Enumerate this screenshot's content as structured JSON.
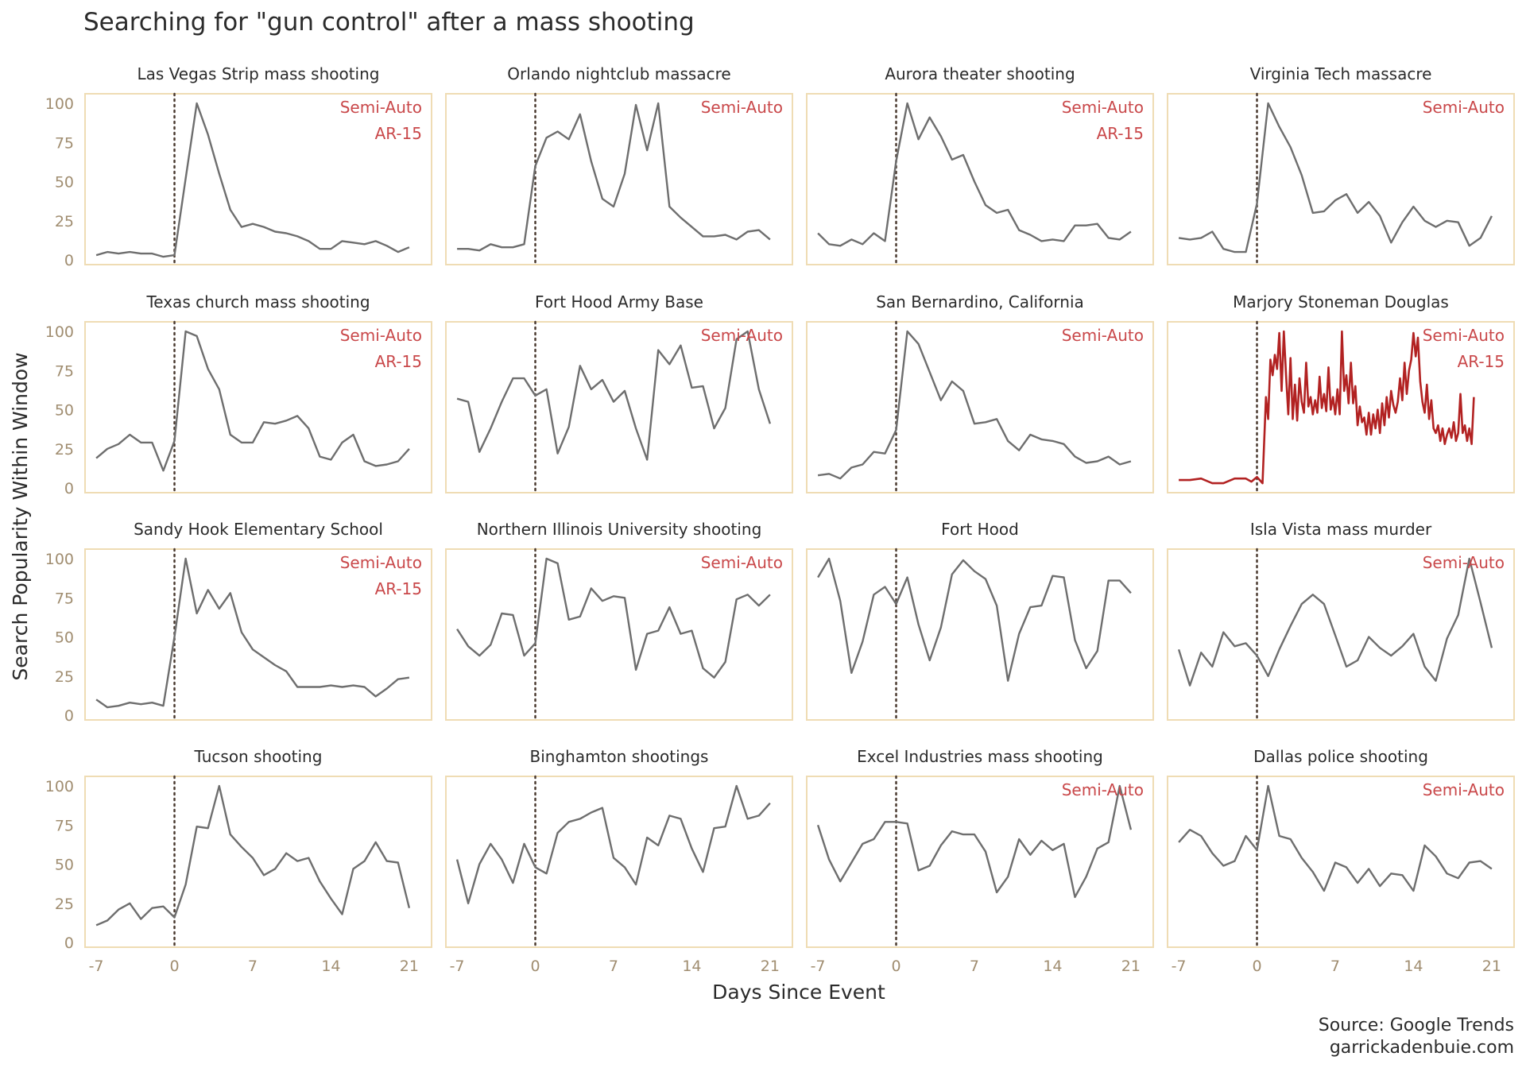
{
  "page": {
    "title": "Searching for \"gun control\" after a mass shooting",
    "source_line1": "Source: Google Trends",
    "source_line2": "garrickadenbuie.com"
  },
  "colors": {
    "line": "#6e6e6e",
    "highlight": "#b22222",
    "annotation": "#c9484a",
    "panel_border": "#efdcb4",
    "tick_label": "#a08d70",
    "event_line": "#4a3a30",
    "text": "#2b2b2b"
  },
  "chart_data": {
    "type": "line",
    "layout": "small-multiples 4x4, shared axes",
    "xlabel": "Days Since Event",
    "ylabel": "Search Popularity Within Window",
    "xlim": [
      -8,
      23
    ],
    "ylim": [
      0,
      100
    ],
    "x_ticks": [
      -7,
      0,
      7,
      14,
      21
    ],
    "y_ticks": [
      0,
      25,
      50,
      75,
      100
    ],
    "event_marker": {
      "x": 0,
      "style": "dotted"
    },
    "grid": false,
    "panels": [
      {
        "name": "Las Vegas Strip mass shooting",
        "tags": [
          "Semi-Auto",
          "AR-15"
        ],
        "x": [
          -7,
          -6,
          -5,
          -4,
          -3,
          -2,
          -1,
          0,
          1,
          2,
          3,
          4,
          5,
          6,
          7,
          8,
          9,
          10,
          11,
          12,
          13,
          14,
          15,
          16,
          17,
          18,
          19,
          20,
          21
        ],
        "y": [
          3,
          5,
          4,
          5,
          4,
          4,
          2,
          3,
          52,
          100,
          80,
          55,
          32,
          21,
          23,
          21,
          18,
          17,
          15,
          12,
          7,
          7,
          12,
          11,
          10,
          12,
          9,
          5,
          8
        ]
      },
      {
        "name": "Orlando nightclub massacre",
        "tags": [
          "Semi-Auto"
        ],
        "x": [
          -7,
          -6,
          -5,
          -4,
          -3,
          -2,
          -1,
          0,
          1,
          2,
          3,
          4,
          5,
          6,
          7,
          8,
          9,
          10,
          11,
          12,
          13,
          14,
          15,
          16,
          17,
          18,
          19,
          20,
          21
        ],
        "y": [
          7,
          7,
          6,
          10,
          8,
          8,
          10,
          60,
          78,
          82,
          77,
          93,
          63,
          39,
          34,
          55,
          99,
          70,
          100,
          34,
          27,
          21,
          15,
          15,
          16,
          13,
          18,
          19,
          13
        ]
      },
      {
        "name": "Aurora theater shooting",
        "tags": [
          "Semi-Auto",
          "AR-15"
        ],
        "x": [
          -7,
          -6,
          -5,
          -4,
          -3,
          -2,
          -1,
          0,
          1,
          2,
          3,
          4,
          5,
          6,
          7,
          8,
          9,
          10,
          11,
          12,
          13,
          14,
          15,
          16,
          17,
          18,
          19,
          20,
          21
        ],
        "y": [
          17,
          10,
          9,
          13,
          10,
          17,
          12,
          63,
          100,
          77,
          91,
          79,
          64,
          67,
          50,
          35,
          30,
          32,
          19,
          16,
          12,
          13,
          12,
          22,
          22,
          23,
          14,
          13,
          18
        ]
      },
      {
        "name": "Virginia Tech massacre",
        "tags": [
          "Semi-Auto"
        ],
        "x": [
          -7,
          -6,
          -5,
          -4,
          -3,
          -2,
          -1,
          0,
          1,
          2,
          3,
          4,
          5,
          6,
          7,
          8,
          9,
          10,
          11,
          12,
          13,
          14,
          15,
          16,
          17,
          18,
          19,
          20,
          21
        ],
        "y": [
          14,
          13,
          14,
          18,
          7,
          5,
          5,
          36,
          100,
          85,
          72,
          54,
          30,
          31,
          38,
          42,
          30,
          37,
          28,
          11,
          24,
          34,
          25,
          21,
          25,
          24,
          9,
          14,
          28
        ]
      },
      {
        "name": "Texas church mass shooting",
        "tags": [
          "Semi-Auto",
          "AR-15"
        ],
        "x": [
          -7,
          -6,
          -5,
          -4,
          -3,
          -2,
          -1,
          0,
          1,
          2,
          3,
          4,
          5,
          6,
          7,
          8,
          9,
          10,
          11,
          12,
          13,
          14,
          15,
          16,
          17,
          18,
          19,
          20,
          21
        ],
        "y": [
          19,
          25,
          28,
          34,
          29,
          29,
          11,
          30,
          100,
          97,
          76,
          63,
          34,
          29,
          29,
          42,
          41,
          43,
          46,
          38,
          20,
          18,
          29,
          34,
          17,
          14,
          15,
          17,
          25
        ]
      },
      {
        "name": "Fort Hood Army Base",
        "tags": [
          "Semi-Auto"
        ],
        "x": [
          -7,
          -6,
          -5,
          -4,
          -3,
          -2,
          -1,
          0,
          1,
          2,
          3,
          4,
          5,
          6,
          7,
          8,
          9,
          10,
          11,
          12,
          13,
          14,
          15,
          16,
          17,
          18,
          19,
          20,
          21
        ],
        "y": [
          57,
          55,
          23,
          38,
          55,
          70,
          70,
          59,
          63,
          22,
          39,
          78,
          63,
          69,
          55,
          62,
          38,
          18,
          88,
          79,
          91,
          64,
          65,
          38,
          51,
          95,
          100,
          63,
          41
        ]
      },
      {
        "name": "San Bernardino, California",
        "tags": [
          "Semi-Auto"
        ],
        "x": [
          -7,
          -6,
          -5,
          -4,
          -3,
          -2,
          -1,
          0,
          1,
          2,
          3,
          4,
          5,
          6,
          7,
          8,
          9,
          10,
          11,
          12,
          13,
          14,
          15,
          16,
          17,
          18,
          19,
          20,
          21
        ],
        "y": [
          8,
          9,
          6,
          13,
          15,
          23,
          22,
          37,
          100,
          92,
          74,
          56,
          68,
          62,
          41,
          42,
          44,
          30,
          24,
          34,
          31,
          30,
          28,
          20,
          16,
          17,
          20,
          15,
          17
        ]
      },
      {
        "name": "Marjory Stoneman Douglas",
        "tags": [
          "Semi-Auto",
          "AR-15"
        ],
        "highlight": true,
        "x": [
          -7,
          -6,
          -5,
          -4,
          -3,
          -2,
          -1,
          -0.5,
          0,
          0.5,
          0.8,
          1,
          1.2,
          1.4,
          1.6,
          1.8,
          2,
          2.2,
          2.4,
          2.6,
          2.8,
          3,
          3.2,
          3.4,
          3.6,
          3.8,
          4,
          4.2,
          4.4,
          4.6,
          4.8,
          5,
          5.2,
          5.4,
          5.6,
          5.8,
          6,
          6.2,
          6.4,
          6.6,
          6.8,
          7,
          7.2,
          7.4,
          7.6,
          7.8,
          8,
          8.2,
          8.4,
          8.6,
          8.8,
          9,
          9.2,
          9.4,
          9.6,
          9.8,
          10,
          10.2,
          10.4,
          10.6,
          10.8,
          11,
          11.2,
          11.4,
          11.6,
          11.8,
          12,
          12.2,
          12.4,
          12.6,
          12.8,
          13,
          13.2,
          13.4,
          13.6,
          13.8,
          14,
          14.2,
          14.4,
          14.6,
          14.8,
          15,
          15.2,
          15.4,
          15.6,
          15.8,
          16,
          16.2,
          16.4,
          16.6,
          16.8,
          17,
          17.2,
          17.4,
          17.6,
          17.8,
          18,
          18.2,
          18.4,
          18.6,
          18.8,
          19,
          19.2,
          19.4
        ],
        "y": [
          5,
          5,
          6,
          3,
          3,
          6,
          6,
          4,
          7,
          3,
          58,
          44,
          82,
          72,
          85,
          76,
          99,
          62,
          100,
          72,
          47,
          83,
          44,
          66,
          43,
          70,
          55,
          48,
          80,
          52,
          58,
          47,
          56,
          48,
          71,
          51,
          60,
          49,
          77,
          50,
          58,
          47,
          63,
          47,
          100,
          62,
          72,
          54,
          80,
          54,
          65,
          40,
          52,
          42,
          45,
          34,
          48,
          34,
          47,
          38,
          50,
          35,
          54,
          40,
          58,
          45,
          62,
          53,
          48,
          55,
          70,
          56,
          80,
          60,
          75,
          82,
          99,
          84,
          96,
          68,
          55,
          48,
          66,
          44,
          56,
          38,
          35,
          40,
          30,
          38,
          28,
          34,
          38,
          32,
          42,
          30,
          35,
          60,
          35,
          40,
          30,
          38,
          28,
          58
        ]
      },
      {
        "name": "Sandy Hook Elementary School",
        "tags": [
          "Semi-Auto",
          "AR-15"
        ],
        "x": [
          -7,
          -6,
          -5,
          -4,
          -3,
          -2,
          -1,
          0,
          1,
          2,
          3,
          4,
          5,
          6,
          7,
          8,
          9,
          10,
          11,
          12,
          13,
          14,
          15,
          16,
          17,
          18,
          19,
          20,
          21
        ],
        "y": [
          10,
          5,
          6,
          8,
          7,
          8,
          6,
          50,
          100,
          65,
          80,
          68,
          78,
          53,
          42,
          37,
          32,
          28,
          18,
          18,
          18,
          19,
          18,
          19,
          18,
          12,
          17,
          23,
          24
        ]
      },
      {
        "name": "Northern Illinois University shooting",
        "tags": [
          "Semi-Auto"
        ],
        "x": [
          -7,
          -6,
          -5,
          -4,
          -3,
          -2,
          -1,
          0,
          1,
          2,
          3,
          4,
          5,
          6,
          7,
          8,
          9,
          10,
          11,
          12,
          13,
          14,
          15,
          16,
          17,
          18,
          19,
          20,
          21
        ],
        "y": [
          55,
          44,
          38,
          45,
          65,
          64,
          38,
          46,
          100,
          97,
          61,
          63,
          81,
          73,
          76,
          75,
          29,
          52,
          54,
          69,
          52,
          54,
          30,
          24,
          34,
          74,
          77,
          70,
          77
        ]
      },
      {
        "name": "Fort Hood",
        "tags": [],
        "x": [
          -7,
          -6,
          -5,
          -4,
          -3,
          -2,
          -1,
          0,
          1,
          2,
          3,
          4,
          5,
          6,
          7,
          8,
          9,
          10,
          11,
          12,
          13,
          14,
          15,
          16,
          17,
          18,
          19,
          20,
          21
        ],
        "y": [
          88,
          100,
          73,
          27,
          47,
          77,
          82,
          71,
          88,
          58,
          35,
          56,
          90,
          99,
          92,
          87,
          70,
          22,
          52,
          69,
          70,
          89,
          88,
          48,
          30,
          41,
          86,
          86,
          78
        ]
      },
      {
        "name": "Isla Vista mass murder",
        "tags": [
          "Semi-Auto"
        ],
        "x": [
          -7,
          -6,
          -5,
          -4,
          -3,
          -2,
          -1,
          0,
          1,
          2,
          3,
          4,
          5,
          6,
          7,
          8,
          9,
          10,
          11,
          12,
          13,
          14,
          15,
          16,
          17,
          18,
          19,
          20,
          21
        ],
        "y": [
          42,
          19,
          40,
          31,
          53,
          44,
          46,
          38,
          25,
          42,
          57,
          71,
          77,
          71,
          51,
          31,
          35,
          50,
          43,
          38,
          44,
          52,
          31,
          22,
          49,
          64,
          100,
          72,
          43
        ]
      },
      {
        "name": "Tucson shooting",
        "tags": [],
        "x": [
          -7,
          -6,
          -5,
          -4,
          -3,
          -2,
          -1,
          0,
          1,
          2,
          3,
          4,
          5,
          6,
          7,
          8,
          9,
          10,
          11,
          12,
          13,
          14,
          15,
          16,
          17,
          18,
          19,
          20,
          21
        ],
        "y": [
          11,
          14,
          21,
          25,
          15,
          22,
          23,
          16,
          37,
          74,
          73,
          100,
          69,
          61,
          54,
          43,
          47,
          57,
          52,
          54,
          39,
          28,
          18,
          47,
          52,
          64,
          52,
          51,
          22
        ]
      },
      {
        "name": "Binghamton shootings",
        "tags": [],
        "x": [
          -7,
          -6,
          -5,
          -4,
          -3,
          -2,
          -1,
          0,
          1,
          2,
          3,
          4,
          5,
          6,
          7,
          8,
          9,
          10,
          11,
          12,
          13,
          14,
          15,
          16,
          17,
          18,
          19,
          20,
          21
        ],
        "y": [
          53,
          25,
          50,
          63,
          53,
          38,
          63,
          48,
          44,
          70,
          77,
          79,
          83,
          86,
          54,
          48,
          37,
          67,
          62,
          81,
          79,
          60,
          45,
          73,
          74,
          100,
          79,
          81,
          89
        ]
      },
      {
        "name": "Excel Industries mass shooting",
        "tags": [
          "Semi-Auto"
        ],
        "x": [
          -7,
          -6,
          -5,
          -4,
          -3,
          -2,
          -1,
          0,
          1,
          2,
          3,
          4,
          5,
          6,
          7,
          8,
          9,
          10,
          11,
          12,
          13,
          14,
          15,
          16,
          17,
          18,
          19,
          20,
          21
        ],
        "y": [
          75,
          53,
          39,
          51,
          63,
          66,
          77,
          77,
          76,
          46,
          49,
          62,
          71,
          69,
          69,
          58,
          32,
          42,
          66,
          56,
          65,
          59,
          63,
          29,
          42,
          60,
          64,
          100,
          72
        ]
      },
      {
        "name": "Dallas police shooting",
        "tags": [
          "Semi-Auto"
        ],
        "x": [
          -7,
          -6,
          -5,
          -4,
          -3,
          -2,
          -1,
          0,
          1,
          2,
          3,
          4,
          5,
          6,
          7,
          8,
          9,
          10,
          11,
          12,
          13,
          14,
          15,
          16,
          17,
          18,
          19,
          20,
          21
        ],
        "y": [
          64,
          72,
          68,
          57,
          49,
          52,
          68,
          59,
          100,
          68,
          66,
          54,
          45,
          33,
          51,
          48,
          38,
          47,
          36,
          44,
          43,
          33,
          62,
          55,
          44,
          41,
          51,
          52,
          47
        ]
      }
    ]
  }
}
